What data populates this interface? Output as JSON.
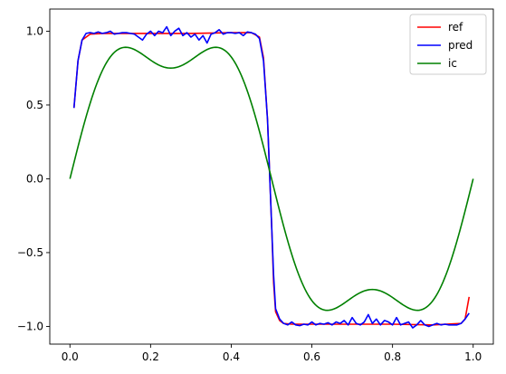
{
  "chart_data": {
    "type": "line",
    "title": "",
    "xlabel": "",
    "ylabel": "",
    "xlim": [
      -0.05,
      1.05
    ],
    "ylim": [
      -1.12,
      1.15
    ],
    "x_ticks": [
      0.0,
      0.2,
      0.4,
      0.6,
      0.8,
      1.0
    ],
    "x_tick_labels": [
      "0.0",
      "0.2",
      "0.4",
      "0.6",
      "0.8",
      "1.0"
    ],
    "y_ticks": [
      -1.0,
      -0.5,
      0.0,
      0.5,
      1.0
    ],
    "y_tick_labels": [
      "−1.0",
      "−0.5",
      "0.0",
      "0.5",
      "1.0"
    ],
    "grid": false,
    "legend_position": "top-right",
    "series": [
      {
        "name": "ref",
        "color": "#ff0000",
        "x": [
          0.01,
          0.02,
          0.03,
          0.05,
          0.08,
          0.12,
          0.2,
          0.3,
          0.4,
          0.45,
          0.47,
          0.48,
          0.49,
          0.495,
          0.5,
          0.505,
          0.51,
          0.52,
          0.53,
          0.55,
          0.6,
          0.7,
          0.8,
          0.9,
          0.97,
          0.98,
          0.99
        ],
        "y": [
          0.48,
          0.8,
          0.94,
          0.98,
          0.985,
          0.985,
          0.985,
          0.985,
          0.99,
          0.99,
          0.96,
          0.82,
          0.4,
          0.05,
          -0.3,
          -0.7,
          -0.9,
          -0.96,
          -0.98,
          -0.985,
          -0.985,
          -0.985,
          -0.985,
          -0.99,
          -0.98,
          -0.95,
          -0.8
        ]
      },
      {
        "name": "pred",
        "color": "#0000ff",
        "x": [
          0.01,
          0.02,
          0.03,
          0.04,
          0.05,
          0.06,
          0.07,
          0.08,
          0.09,
          0.1,
          0.11,
          0.12,
          0.13,
          0.14,
          0.15,
          0.16,
          0.17,
          0.18,
          0.19,
          0.2,
          0.21,
          0.22,
          0.23,
          0.24,
          0.25,
          0.26,
          0.27,
          0.28,
          0.29,
          0.3,
          0.31,
          0.32,
          0.33,
          0.34,
          0.35,
          0.36,
          0.37,
          0.38,
          0.39,
          0.4,
          0.41,
          0.42,
          0.43,
          0.44,
          0.45,
          0.46,
          0.47,
          0.48,
          0.49,
          0.495,
          0.5,
          0.505,
          0.51,
          0.52,
          0.53,
          0.54,
          0.55,
          0.56,
          0.57,
          0.58,
          0.59,
          0.6,
          0.61,
          0.62,
          0.63,
          0.64,
          0.65,
          0.66,
          0.67,
          0.68,
          0.69,
          0.7,
          0.71,
          0.72,
          0.73,
          0.74,
          0.75,
          0.76,
          0.77,
          0.78,
          0.79,
          0.8,
          0.81,
          0.82,
          0.83,
          0.84,
          0.85,
          0.86,
          0.87,
          0.88,
          0.89,
          0.9,
          0.91,
          0.92,
          0.93,
          0.94,
          0.95,
          0.96,
          0.97,
          0.98,
          0.99
        ],
        "y": [
          0.48,
          0.8,
          0.94,
          0.985,
          0.99,
          0.985,
          0.995,
          0.985,
          0.99,
          1.0,
          0.98,
          0.985,
          0.99,
          0.99,
          0.985,
          0.98,
          0.96,
          0.94,
          0.98,
          1.0,
          0.97,
          1.0,
          0.99,
          1.03,
          0.97,
          1.0,
          1.02,
          0.97,
          0.99,
          0.96,
          0.98,
          0.94,
          0.97,
          0.92,
          0.98,
          0.99,
          1.01,
          0.98,
          0.99,
          0.99,
          0.985,
          0.99,
          0.97,
          0.995,
          0.99,
          0.98,
          0.95,
          0.8,
          0.4,
          0.05,
          -0.3,
          -0.65,
          -0.88,
          -0.95,
          -0.98,
          -0.99,
          -0.97,
          -0.99,
          -0.995,
          -0.985,
          -0.99,
          -0.97,
          -0.99,
          -0.98,
          -0.985,
          -0.975,
          -0.99,
          -0.97,
          -0.98,
          -0.96,
          -0.99,
          -0.94,
          -0.98,
          -0.99,
          -0.97,
          -0.92,
          -0.98,
          -0.95,
          -0.99,
          -0.96,
          -0.97,
          -0.99,
          -0.94,
          -0.99,
          -0.98,
          -0.97,
          -1.01,
          -0.99,
          -0.96,
          -0.99,
          -1.0,
          -0.99,
          -0.98,
          -0.99,
          -0.985,
          -0.99,
          -0.99,
          -0.99,
          -0.98,
          -0.95,
          -0.91
        ]
      },
      {
        "name": "ic",
        "color": "#008000",
        "function": "sin(2πx) + 0.25·sin(6πx)",
        "x_range": [
          0.0,
          1.0
        ]
      }
    ]
  }
}
